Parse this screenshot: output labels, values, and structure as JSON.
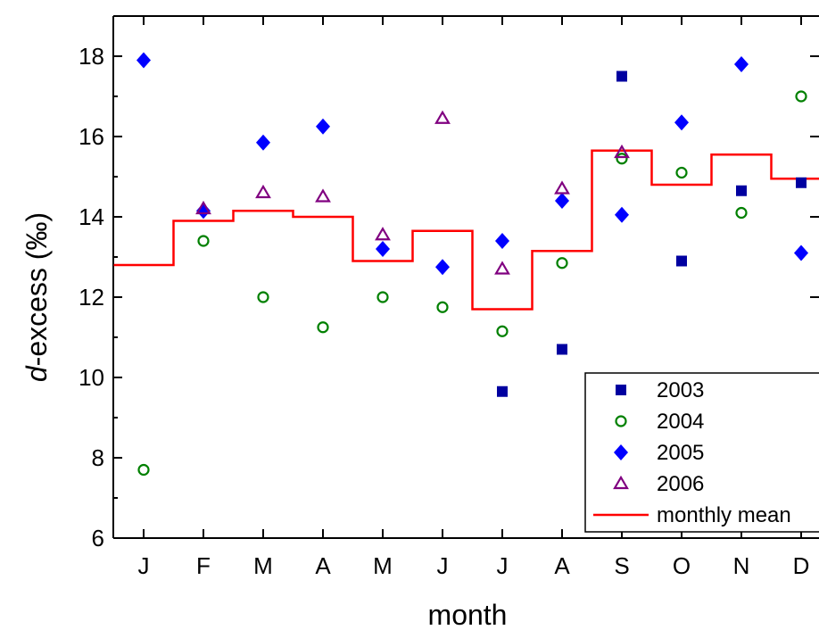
{
  "chart_data": {
    "type": "scatter",
    "categories": [
      "J",
      "F",
      "M",
      "A",
      "M",
      "J",
      "J",
      "A",
      "S",
      "O",
      "N",
      "D"
    ],
    "xlabel": "month",
    "ylabel_italic": "d",
    "ylabel_rest": "-excess (‰)",
    "ylim": [
      6,
      19
    ],
    "yticks": [
      6,
      8,
      10,
      12,
      14,
      16,
      18
    ],
    "grid": false,
    "legend_position": "bottom-right",
    "series": [
      {
        "name": "2003",
        "marker": "square",
        "color": "#0000a0",
        "values": [
          null,
          null,
          null,
          null,
          null,
          null,
          9.65,
          10.7,
          17.5,
          12.9,
          14.65,
          14.85
        ]
      },
      {
        "name": "2004",
        "marker": "circle",
        "color": "#008000",
        "values": [
          7.7,
          13.4,
          12.0,
          11.25,
          12.0,
          11.75,
          11.15,
          12.85,
          15.45,
          15.1,
          14.1,
          17.0
        ]
      },
      {
        "name": "2005",
        "marker": "diamond",
        "color": "#0000ff",
        "values": [
          17.9,
          14.15,
          15.85,
          16.25,
          13.2,
          12.75,
          13.4,
          14.4,
          14.05,
          16.35,
          17.8,
          13.1
        ]
      },
      {
        "name": "2006",
        "marker": "triangle",
        "color": "#800080",
        "values": [
          null,
          14.2,
          14.6,
          14.5,
          13.55,
          16.45,
          12.7,
          14.7,
          15.6,
          null,
          null,
          null
        ]
      },
      {
        "name": "monthly mean",
        "marker": "step-line",
        "color": "#ff0000",
        "values": [
          12.8,
          13.9,
          14.15,
          14.0,
          12.9,
          13.65,
          11.7,
          13.15,
          15.65,
          14.8,
          15.55,
          14.95
        ]
      }
    ]
  }
}
